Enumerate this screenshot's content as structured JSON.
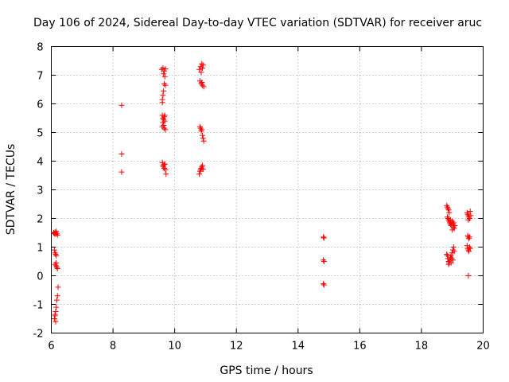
{
  "chart_data": {
    "type": "scatter",
    "title": "Day 106 of 2024, Sidereal Day-to-day VTEC variation (SDTVAR) for receiver aruc",
    "xlabel": "GPS time / hours",
    "ylabel": "SDTVAR / TECUs",
    "xlim": [
      6,
      20
    ],
    "ylim": [
      -2,
      8
    ],
    "xticks": [
      6,
      8,
      10,
      12,
      14,
      16,
      18,
      20
    ],
    "yticks": [
      -2,
      -1,
      0,
      1,
      2,
      3,
      4,
      5,
      6,
      7,
      8
    ],
    "xtick_labels": [
      "6",
      "8",
      "10",
      "12",
      "14",
      "16",
      "18",
      "20"
    ],
    "ytick_labels": [
      "-2",
      "-1",
      "0",
      "1",
      "2",
      "3",
      "4",
      "5",
      "6",
      "7",
      "8"
    ],
    "grid": true,
    "marker": "+",
    "marker_color": "#ff0000",
    "series": [
      {
        "name": "SDTVAR",
        "points": [
          [
            6.08,
            1.5
          ],
          [
            6.1,
            1.47
          ],
          [
            6.12,
            1.52
          ],
          [
            6.14,
            1.45
          ],
          [
            6.16,
            1.55
          ],
          [
            6.18,
            1.48
          ],
          [
            6.2,
            1.42
          ],
          [
            6.1,
            0.9
          ],
          [
            6.12,
            0.8
          ],
          [
            6.14,
            0.75
          ],
          [
            6.16,
            0.7
          ],
          [
            6.12,
            0.4
          ],
          [
            6.15,
            0.35
          ],
          [
            6.18,
            0.3
          ],
          [
            6.2,
            0.25
          ],
          [
            6.16,
            0.45
          ],
          [
            6.22,
            -0.4
          ],
          [
            6.2,
            -0.7
          ],
          [
            6.18,
            -0.85
          ],
          [
            6.16,
            -1.1
          ],
          [
            6.14,
            -1.25
          ],
          [
            6.12,
            -1.4
          ],
          [
            6.1,
            -1.5
          ],
          [
            6.14,
            -1.6
          ],
          [
            6.12,
            -1.35
          ],
          [
            8.28,
            5.95
          ],
          [
            8.28,
            4.25
          ],
          [
            8.28,
            3.62
          ],
          [
            9.58,
            7.2
          ],
          [
            9.62,
            7.25
          ],
          [
            9.66,
            7.15
          ],
          [
            9.7,
            7.22
          ],
          [
            9.64,
            7.05
          ],
          [
            9.68,
            6.95
          ],
          [
            9.66,
            6.7
          ],
          [
            9.7,
            6.65
          ],
          [
            9.64,
            6.45
          ],
          [
            9.62,
            6.3
          ],
          [
            9.6,
            6.15
          ],
          [
            9.6,
            6.05
          ],
          [
            9.6,
            5.6
          ],
          [
            9.62,
            5.5
          ],
          [
            9.64,
            5.45
          ],
          [
            9.66,
            5.55
          ],
          [
            9.68,
            5.6
          ],
          [
            9.62,
            5.35
          ],
          [
            9.64,
            5.25
          ],
          [
            9.66,
            5.15
          ],
          [
            9.7,
            5.1
          ],
          [
            9.6,
            5.2
          ],
          [
            9.68,
            5.4
          ],
          [
            9.6,
            3.95
          ],
          [
            9.62,
            3.85
          ],
          [
            9.64,
            3.8
          ],
          [
            9.66,
            3.75
          ],
          [
            9.68,
            3.9
          ],
          [
            9.7,
            3.7
          ],
          [
            9.72,
            3.55
          ],
          [
            9.66,
            3.88
          ],
          [
            10.8,
            7.2
          ],
          [
            10.84,
            7.3
          ],
          [
            10.88,
            7.4
          ],
          [
            10.92,
            7.35
          ],
          [
            10.86,
            7.1
          ],
          [
            10.9,
            7.25
          ],
          [
            10.82,
            6.8
          ],
          [
            10.86,
            6.7
          ],
          [
            10.9,
            6.65
          ],
          [
            10.94,
            6.6
          ],
          [
            10.88,
            6.75
          ],
          [
            10.82,
            5.2
          ],
          [
            10.84,
            5.15
          ],
          [
            10.86,
            5.05
          ],
          [
            10.88,
            5.1
          ],
          [
            10.9,
            4.9
          ],
          [
            10.92,
            4.8
          ],
          [
            10.94,
            4.7
          ],
          [
            10.8,
            3.55
          ],
          [
            10.82,
            3.65
          ],
          [
            10.84,
            3.7
          ],
          [
            10.86,
            3.75
          ],
          [
            10.88,
            3.8
          ],
          [
            10.9,
            3.85
          ],
          [
            10.92,
            3.72
          ],
          [
            14.82,
            1.35
          ],
          [
            14.84,
            1.32
          ],
          [
            14.82,
            0.55
          ],
          [
            14.84,
            0.5
          ],
          [
            14.82,
            -0.28
          ],
          [
            14.84,
            -0.32
          ],
          [
            18.82,
            2.45
          ],
          [
            18.84,
            2.4
          ],
          [
            18.86,
            2.35
          ],
          [
            18.88,
            2.3
          ],
          [
            18.9,
            2.2
          ],
          [
            18.84,
            2.05
          ],
          [
            18.86,
            2.0
          ],
          [
            18.88,
            1.95
          ],
          [
            18.9,
            1.9
          ],
          [
            18.92,
            1.85
          ],
          [
            18.94,
            1.8
          ],
          [
            18.96,
            1.75
          ],
          [
            18.98,
            1.85
          ],
          [
            19.0,
            1.9
          ],
          [
            19.02,
            1.8
          ],
          [
            19.04,
            1.7
          ],
          [
            19.06,
            1.65
          ],
          [
            19.08,
            1.75
          ],
          [
            19.0,
            1.6
          ],
          [
            18.94,
            1.95
          ],
          [
            19.04,
            1.85
          ],
          [
            18.82,
            0.75
          ],
          [
            18.84,
            0.7
          ],
          [
            18.86,
            0.6
          ],
          [
            18.88,
            0.5
          ],
          [
            18.9,
            0.45
          ],
          [
            18.92,
            0.55
          ],
          [
            18.94,
            0.65
          ],
          [
            18.96,
            0.7
          ],
          [
            18.98,
            0.6
          ],
          [
            19.0,
            0.8
          ],
          [
            19.02,
            0.9
          ],
          [
            19.04,
            1.0
          ],
          [
            19.06,
            0.85
          ],
          [
            18.88,
            0.4
          ],
          [
            18.96,
            0.45
          ],
          [
            19.02,
            0.55
          ],
          [
            19.48,
            2.2
          ],
          [
            19.5,
            2.15
          ],
          [
            19.52,
            2.1
          ],
          [
            19.54,
            2.05
          ],
          [
            19.56,
            2.0
          ],
          [
            19.58,
            2.25
          ],
          [
            19.6,
            2.1
          ],
          [
            19.52,
            1.95
          ],
          [
            19.5,
            1.4
          ],
          [
            19.52,
            1.35
          ],
          [
            19.54,
            1.3
          ],
          [
            19.56,
            1.35
          ],
          [
            19.48,
            1.05
          ],
          [
            19.5,
            0.95
          ],
          [
            19.52,
            0.9
          ],
          [
            19.54,
            0.85
          ],
          [
            19.56,
            1.0
          ],
          [
            19.58,
            0.95
          ],
          [
            19.52,
            0.0
          ]
        ]
      }
    ]
  }
}
